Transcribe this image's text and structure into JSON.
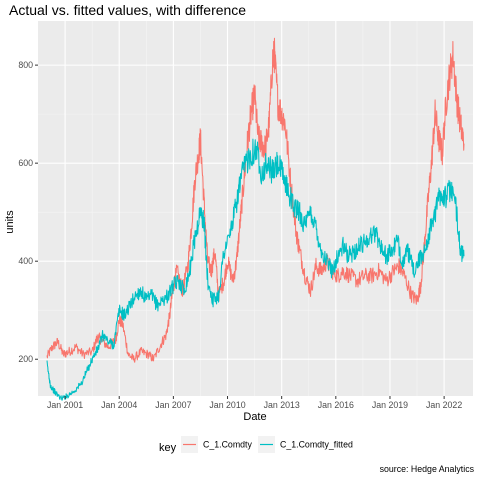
{
  "chart_data": {
    "type": "line",
    "title": "Actual vs. fitted values, with difference",
    "xlabel": "Date",
    "ylabel": "units",
    "caption": "source: Hedge Analytics",
    "xlim": [
      1999.5,
      2023.6
    ],
    "ylim": [
      125,
      890
    ],
    "x_ticks": [
      2001,
      2004,
      2007,
      2010,
      2013,
      2016,
      2019,
      2022
    ],
    "x_tick_labels": [
      "Jan 2001",
      "Jan 2004",
      "Jan 2007",
      "Jan 2010",
      "Jan 2013",
      "Jan 2016",
      "Jan 2019",
      "Jan 2022"
    ],
    "y_ticks": [
      200,
      400,
      600,
      800
    ],
    "y_tick_labels": [
      "200",
      "400",
      "600",
      "800"
    ],
    "legend": {
      "title": "key",
      "position": "bottom",
      "entries": [
        {
          "name": "C_1.Comdty",
          "color": "#F8766D"
        },
        {
          "name": "C_1.Comdty_fitted",
          "color": "#00BFC4"
        }
      ]
    },
    "series": [
      {
        "name": "C_1.Comdty",
        "color": "#F8766D",
        "x": [
          2000.0,
          2000.3,
          2000.6,
          2000.9,
          2001.2,
          2001.6,
          2002.0,
          2002.5,
          2002.8,
          2003.0,
          2003.4,
          2003.8,
          2004.0,
          2004.2,
          2004.5,
          2004.8,
          2005.2,
          2005.6,
          2005.9,
          2006.3,
          2006.6,
          2006.8,
          2007.0,
          2007.2,
          2007.5,
          2007.8,
          2008.0,
          2008.2,
          2008.4,
          2008.5,
          2008.7,
          2008.9,
          2009.1,
          2009.3,
          2009.5,
          2009.8,
          2010.0,
          2010.3,
          2010.5,
          2010.7,
          2010.9,
          2011.1,
          2011.3,
          2011.5,
          2011.7,
          2011.9,
          2012.1,
          2012.3,
          2012.5,
          2012.6,
          2012.8,
          2013.0,
          2013.2,
          2013.5,
          2013.8,
          2014.0,
          2014.3,
          2014.6,
          2014.9,
          2015.2,
          2015.5,
          2015.8,
          2016.1,
          2016.4,
          2016.8,
          2017.2,
          2017.6,
          2018.0,
          2018.4,
          2018.8,
          2019.2,
          2019.5,
          2019.8,
          2020.2,
          2020.5,
          2020.7,
          2020.9,
          2021.1,
          2021.3,
          2021.5,
          2021.7,
          2021.9,
          2022.1,
          2022.3,
          2022.5,
          2022.7,
          2022.9,
          2023.1
        ],
        "y": [
          205,
          225,
          235,
          210,
          215,
          225,
          210,
          215,
          245,
          240,
          225,
          240,
          280,
          270,
          210,
          200,
          215,
          210,
          200,
          230,
          250,
          290,
          350,
          380,
          340,
          390,
          470,
          570,
          620,
          650,
          520,
          400,
          380,
          420,
          330,
          360,
          400,
          360,
          400,
          480,
          560,
          640,
          700,
          740,
          650,
          640,
          630,
          680,
          810,
          820,
          720,
          700,
          680,
          560,
          460,
          420,
          370,
          340,
          390,
          380,
          400,
          380,
          370,
          380,
          370,
          360,
          370,
          370,
          380,
          360,
          380,
          390,
          370,
          330,
          320,
          350,
          430,
          520,
          600,
          700,
          650,
          620,
          720,
          780,
          820,
          730,
          680,
          640
        ]
      },
      {
        "name": "C_1.Comdty_fitted",
        "color": "#00BFC4",
        "x": [
          2000.0,
          2000.2,
          2000.5,
          2000.8,
          2001.1,
          2001.5,
          2001.9,
          2002.2,
          2002.5,
          2002.8,
          2003.1,
          2003.4,
          2003.7,
          2004.0,
          2004.3,
          2004.6,
          2004.9,
          2005.2,
          2005.5,
          2005.8,
          2006.1,
          2006.4,
          2006.7,
          2007.0,
          2007.3,
          2007.6,
          2007.9,
          2008.2,
          2008.5,
          2008.7,
          2008.9,
          2009.2,
          2009.5,
          2009.8,
          2010.1,
          2010.4,
          2010.7,
          2011.0,
          2011.3,
          2011.6,
          2011.9,
          2012.2,
          2012.5,
          2012.8,
          2013.1,
          2013.4,
          2013.7,
          2014.0,
          2014.3,
          2014.6,
          2014.9,
          2015.2,
          2015.5,
          2015.8,
          2016.1,
          2016.4,
          2016.7,
          2017.0,
          2017.3,
          2017.6,
          2017.9,
          2018.2,
          2018.5,
          2018.8,
          2019.1,
          2019.4,
          2019.7,
          2020.0,
          2020.3,
          2020.6,
          2020.9,
          2021.2,
          2021.5,
          2021.8,
          2022.1,
          2022.4,
          2022.7,
          2022.9,
          2023.1
        ],
        "y": [
          190,
          145,
          130,
          120,
          125,
          135,
          150,
          175,
          200,
          220,
          250,
          235,
          230,
          300,
          290,
          310,
          330,
          340,
          320,
          330,
          310,
          320,
          330,
          350,
          360,
          340,
          380,
          450,
          500,
          480,
          360,
          320,
          330,
          420,
          450,
          500,
          560,
          600,
          620,
          630,
          580,
          600,
          580,
          600,
          570,
          540,
          510,
          500,
          470,
          500,
          470,
          420,
          400,
          380,
          410,
          430,
          410,
          420,
          430,
          440,
          450,
          460,
          430,
          410,
          420,
          440,
          400,
          420,
          380,
          400,
          420,
          460,
          500,
          540,
          530,
          550,
          500,
          420,
          410
        ]
      }
    ]
  }
}
